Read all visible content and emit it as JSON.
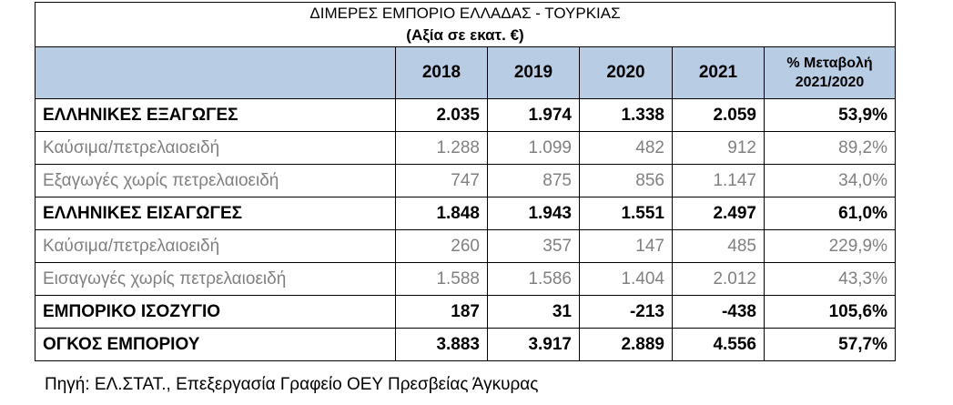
{
  "table": {
    "title": "ΔΙΜΕΡΕΣ ΕΜΠΟΡΙΟ ΕΛΛΑΔΑΣ - ΤΟΥΡΚΙΑΣ",
    "subtitle": "(Αξία σε εκατ. €)",
    "headers": [
      "",
      "2018",
      "2019",
      "2020",
      "2021",
      "% Μεταβολή\n2021/2020"
    ],
    "rows": [
      {
        "label": "ΕΛΛΗΝΙΚΕΣ ΕΞΑΓΩΓΕΣ",
        "values": [
          "2.035",
          "1.974",
          "1.338",
          "2.059",
          "53,9%"
        ],
        "style": "bold"
      },
      {
        "label": "Καύσιμα/πετρελαιοειδή",
        "values": [
          "1.288",
          "1.099",
          "482",
          "912",
          "89,2%"
        ],
        "style": "sub"
      },
      {
        "label": "Εξαγωγές χωρίς πετρελαιοειδή",
        "values": [
          "747",
          "875",
          "856",
          "1.147",
          "34,0%"
        ],
        "style": "sub"
      },
      {
        "label": "ΕΛΛΗΝΙΚΕΣ ΕΙΣΑΓΩΓΕΣ",
        "values": [
          "1.848",
          "1.943",
          "1.551",
          "2.497",
          "61,0%"
        ],
        "style": "bold"
      },
      {
        "label": "Καύσιμα/πετρελαιοειδή",
        "values": [
          "260",
          "357",
          "147",
          "485",
          "229,9%"
        ],
        "style": "sub"
      },
      {
        "label": "Εισαγωγές χωρίς πετρελαιοειδή",
        "values": [
          "1.588",
          "1.586",
          "1.404",
          "2.012",
          "43,3%"
        ],
        "style": "sub"
      },
      {
        "label": "ΕΜΠΟΡΙΚΟ ΙΣΟΖΥΓΙΟ",
        "values": [
          "187",
          "31",
          "-213",
          "-438",
          "105,6%"
        ],
        "style": "bold"
      },
      {
        "label": "ΟΓΚΟΣ ΕΜΠΟΡΙΟΥ",
        "values": [
          "3.883",
          "3.917",
          "2.889",
          "4.556",
          "57,7%"
        ],
        "style": "bold"
      }
    ]
  },
  "source": "Πηγή: ΕΛ.ΣΤΑΤ., Επεξεργασία Γραφείο ΟΕΥ Πρεσβείας Άγκυρας",
  "colors": {
    "header_bg": "#b8cce4",
    "sub_text": "#808080"
  }
}
